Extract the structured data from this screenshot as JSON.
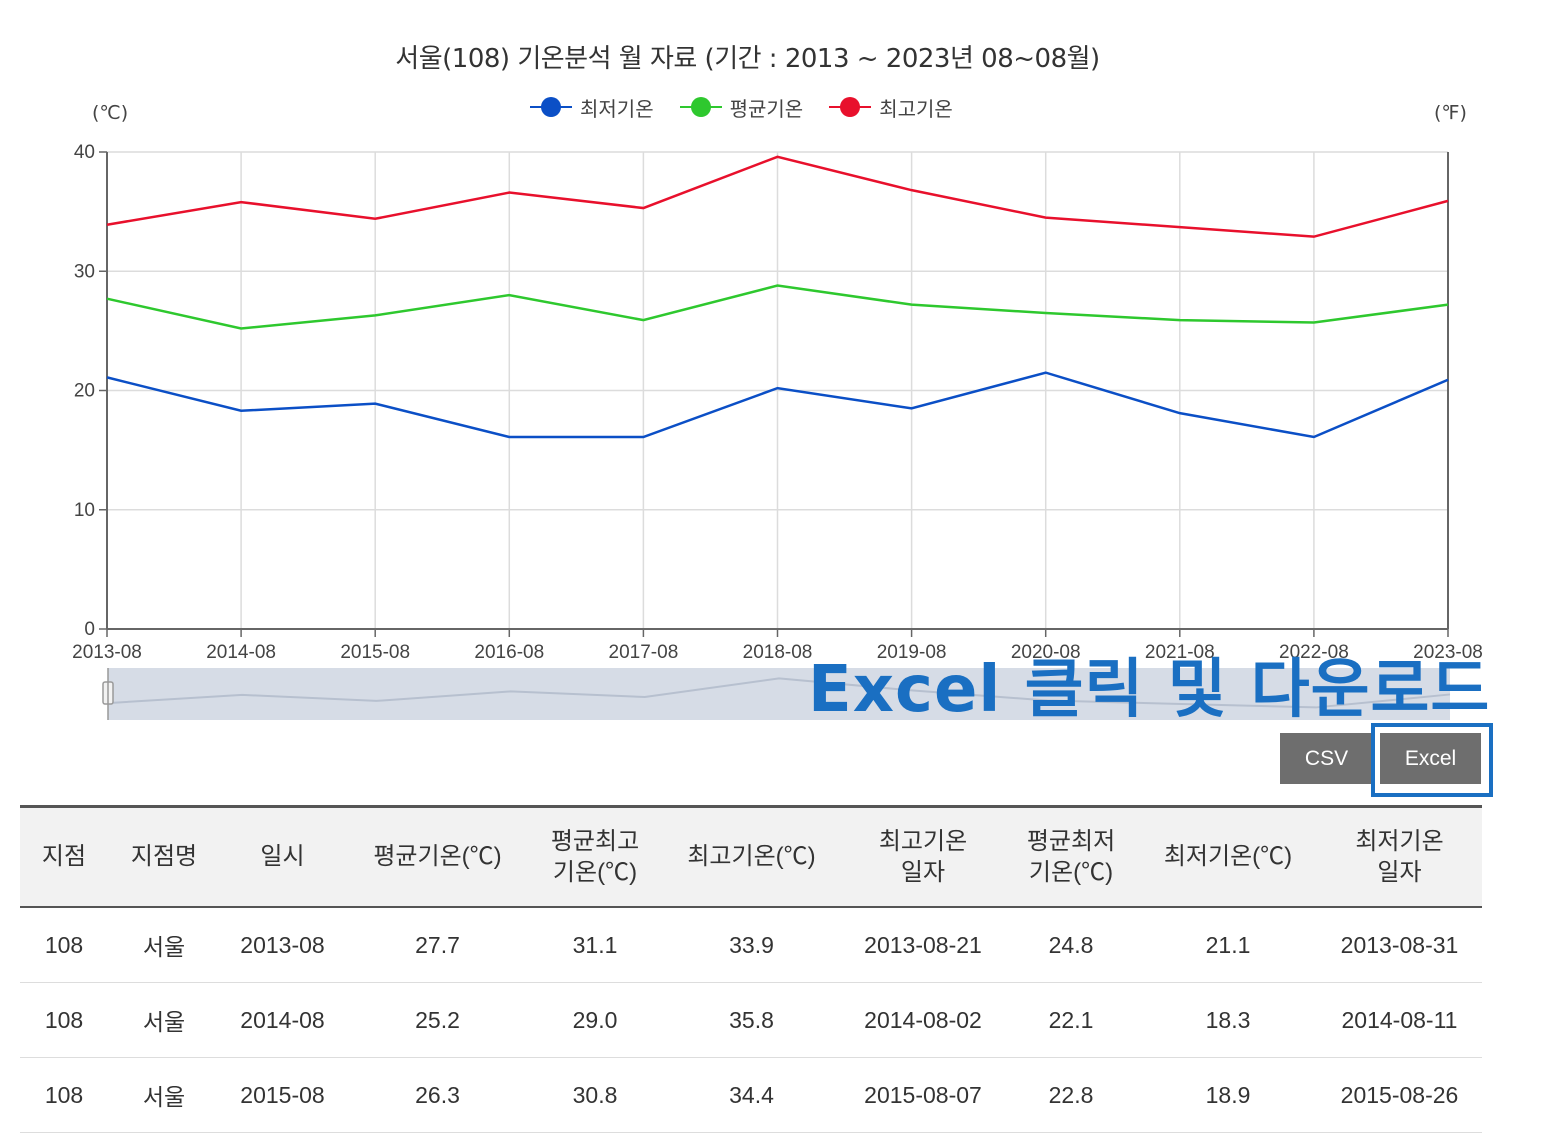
{
  "chart": {
    "title": "서울(108) 기온분석 월 자료 (기간 : 2013 ~ 2023년  08~08월)",
    "unit_left": "(℃)",
    "unit_right": "(℉)",
    "legend": [
      {
        "label": "최저기온",
        "color": "#0b4fc6"
      },
      {
        "label": "평균기온",
        "color": "#2ec82e"
      },
      {
        "label": "최고기온",
        "color": "#e8102c"
      }
    ],
    "overlay_caption": "Excel 클릭 및 다운로드"
  },
  "chart_data": {
    "type": "line",
    "title": "서울(108) 기온분석 월 자료 (기간 : 2013 ~ 2023년  08~08월)",
    "xlabel": "",
    "ylabel": "(℃)",
    "ylim": [
      0,
      40
    ],
    "yticks": [
      0,
      10,
      20,
      30,
      40
    ],
    "grid": true,
    "legend_position": "top",
    "categories": [
      "2013-08",
      "2014-08",
      "2015-08",
      "2016-08",
      "2017-08",
      "2018-08",
      "2019-08",
      "2020-08",
      "2021-08",
      "2022-08",
      "2023-08"
    ],
    "series": [
      {
        "name": "최저기온",
        "color": "#0b4fc6",
        "values": [
          21.1,
          18.3,
          18.9,
          16.1,
          16.1,
          20.2,
          18.5,
          21.5,
          18.1,
          16.1,
          20.9
        ]
      },
      {
        "name": "평균기온",
        "color": "#2ec82e",
        "values": [
          27.7,
          25.2,
          26.3,
          28.0,
          25.9,
          28.8,
          27.2,
          26.5,
          25.9,
          25.7,
          27.2
        ]
      },
      {
        "name": "최고기온",
        "color": "#e8102c",
        "values": [
          33.9,
          35.8,
          34.4,
          36.6,
          35.3,
          39.6,
          36.8,
          34.5,
          33.7,
          32.9,
          35.9
        ]
      }
    ]
  },
  "buttons": {
    "csv_label": "CSV",
    "excel_label": "Excel"
  },
  "table": {
    "columns": [
      "지점",
      "지점명",
      "일시",
      "평균기온(℃)",
      "평균최고\n기온(℃)",
      "최고기온(℃)",
      "최고기온\n일자",
      "평균최저\n기온(℃)",
      "최저기온(℃)",
      "최저기온\n일자"
    ],
    "rows": [
      [
        "108",
        "서울",
        "2013-08",
        "27.7",
        "31.1",
        "33.9",
        "2013-08-21",
        "24.8",
        "21.1",
        "2013-08-31"
      ],
      [
        "108",
        "서울",
        "2014-08",
        "25.2",
        "29.0",
        "35.8",
        "2014-08-02",
        "22.1",
        "18.3",
        "2014-08-11"
      ],
      [
        "108",
        "서울",
        "2015-08",
        "26.3",
        "30.8",
        "34.4",
        "2015-08-07",
        "22.8",
        "18.9",
        "2015-08-26"
      ]
    ]
  }
}
